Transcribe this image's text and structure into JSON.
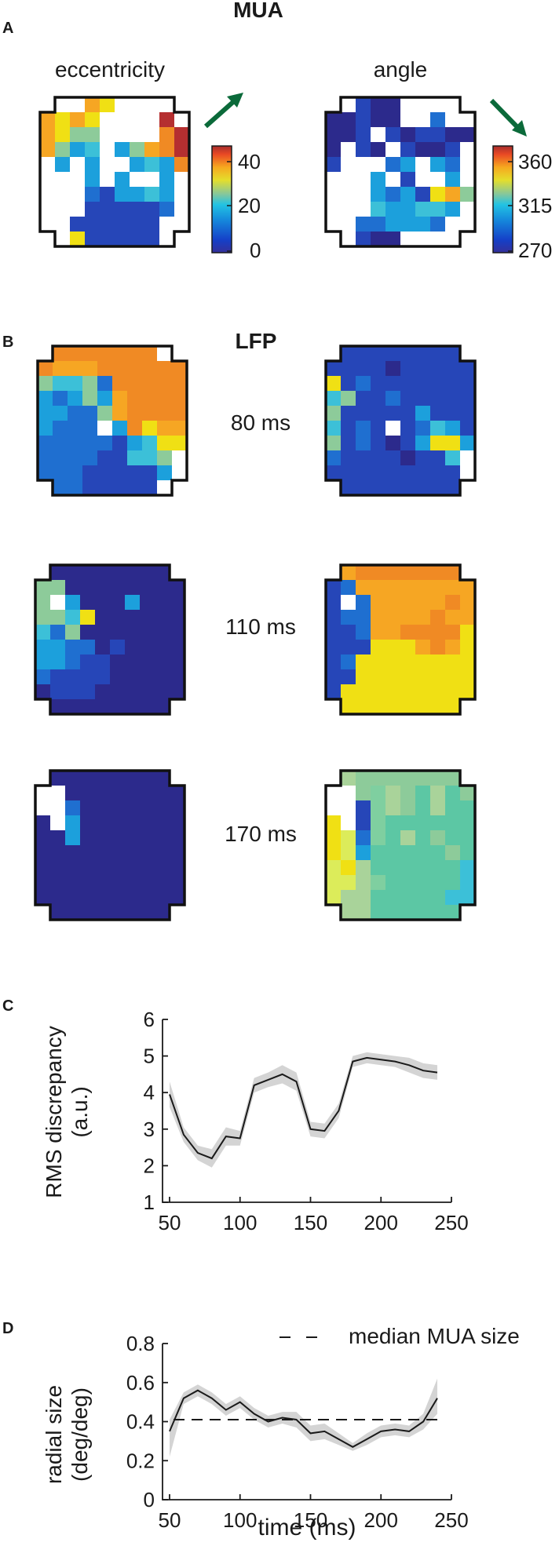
{
  "panels": {
    "a": "A",
    "b": "B",
    "c": "C",
    "d": "D"
  },
  "mua_label": "MUA",
  "lfp_label": "LFP",
  "colors": {
    "mua": "#c0243a",
    "lfp": "#2e3192",
    "arrow": "#0b6a3a",
    "line": "#1a1a1a",
    "band": "#d4d4d4"
  },
  "maps": {
    "eccentricity_title": "eccentricity",
    "angle_title": "angle",
    "ecc_colorbar_ticks": [
      "40",
      "20",
      "0"
    ],
    "angle_colorbar_ticks": [
      "360",
      "315",
      "270"
    ],
    "time_labels": [
      "80 ms",
      "110 ms",
      "170 ms"
    ]
  },
  "chart_data": [
    {
      "type": "line",
      "panel": "C",
      "xlabel": "",
      "ylabel": "RMS discrepancy (a.u.)",
      "ylabel_lines": [
        "RMS discrepancy",
        "(a.u.)"
      ],
      "xlim": [
        45,
        250
      ],
      "ylim": [
        1,
        6
      ],
      "xticks": [
        "50",
        "100",
        "150",
        "200",
        "250"
      ],
      "yticks": [
        "1",
        "2",
        "3",
        "4",
        "5",
        "6"
      ],
      "x": [
        50,
        60,
        70,
        80,
        90,
        100,
        110,
        120,
        130,
        140,
        150,
        160,
        170,
        180,
        190,
        200,
        210,
        220,
        230,
        240
      ],
      "y": [
        3.95,
        2.85,
        2.35,
        2.2,
        2.8,
        2.75,
        4.2,
        4.35,
        4.5,
        4.3,
        3.0,
        2.95,
        3.5,
        4.85,
        4.95,
        4.9,
        4.85,
        4.75,
        4.6,
        4.55
      ],
      "band_lower": [
        3.6,
        2.65,
        2.15,
        1.95,
        2.55,
        2.55,
        4.0,
        4.15,
        4.25,
        4.05,
        2.8,
        2.75,
        3.3,
        4.7,
        4.8,
        4.75,
        4.7,
        4.55,
        4.4,
        4.35
      ],
      "band_upper": [
        4.3,
        3.05,
        2.55,
        2.45,
        3.05,
        2.95,
        4.4,
        4.55,
        4.75,
        4.55,
        3.2,
        3.15,
        3.7,
        5.0,
        5.1,
        5.05,
        5.0,
        4.95,
        4.8,
        4.75
      ]
    },
    {
      "type": "line",
      "panel": "D",
      "xlabel": "time (ms)",
      "ylabel": "radial size (deg/deg)",
      "ylabel_lines": [
        "radial size",
        "(deg/deg)"
      ],
      "xlim": [
        45,
        250
      ],
      "ylim": [
        0,
        0.8
      ],
      "xticks": [
        "50",
        "100",
        "150",
        "200",
        "250"
      ],
      "yticks": [
        "0",
        "0.2",
        "0.4",
        "0.6",
        "0.8"
      ],
      "legend": "median MUA size",
      "reference_y": 0.41,
      "x": [
        50,
        60,
        70,
        80,
        90,
        100,
        110,
        120,
        130,
        140,
        150,
        160,
        170,
        180,
        190,
        200,
        210,
        220,
        230,
        240
      ],
      "y": [
        0.35,
        0.52,
        0.56,
        0.52,
        0.46,
        0.5,
        0.44,
        0.4,
        0.42,
        0.41,
        0.34,
        0.35,
        0.31,
        0.27,
        0.31,
        0.35,
        0.36,
        0.35,
        0.4,
        0.52
      ],
      "band_lower": [
        0.22,
        0.49,
        0.53,
        0.49,
        0.43,
        0.47,
        0.41,
        0.37,
        0.39,
        0.37,
        0.3,
        0.31,
        0.28,
        0.25,
        0.28,
        0.32,
        0.33,
        0.32,
        0.36,
        0.44
      ],
      "band_upper": [
        0.41,
        0.55,
        0.59,
        0.55,
        0.49,
        0.53,
        0.47,
        0.43,
        0.45,
        0.45,
        0.38,
        0.39,
        0.34,
        0.29,
        0.34,
        0.38,
        0.39,
        0.38,
        0.44,
        0.62
      ]
    }
  ]
}
